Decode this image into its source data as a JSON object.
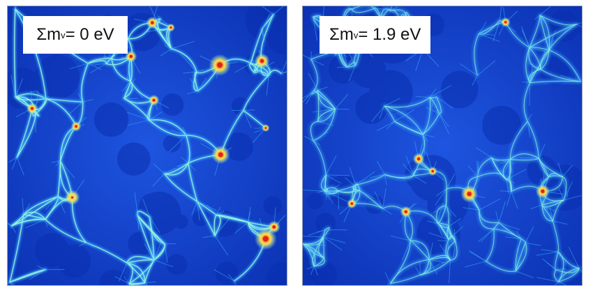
{
  "panels": [
    {
      "id": "left",
      "label_prefix": "Σm",
      "label_sub": "v",
      "label_suffix": " = 0 eV",
      "seed": 7,
      "nodes": 60,
      "hubs": 14,
      "style": "sharp"
    },
    {
      "id": "right",
      "label_prefix": "Σm",
      "label_sub": "v",
      "label_suffix": " = 1.9 eV",
      "seed": 23,
      "nodes": 95,
      "hubs": 9,
      "style": "smooth"
    }
  ],
  "colors": {
    "void": "#0a2fb0",
    "background": "#1e55e0",
    "filament_outer": "#3fb6ff",
    "filament_inner": "#9ef3d8",
    "hub_ring": "#ffe14a",
    "hub_core": "#e4201a"
  }
}
